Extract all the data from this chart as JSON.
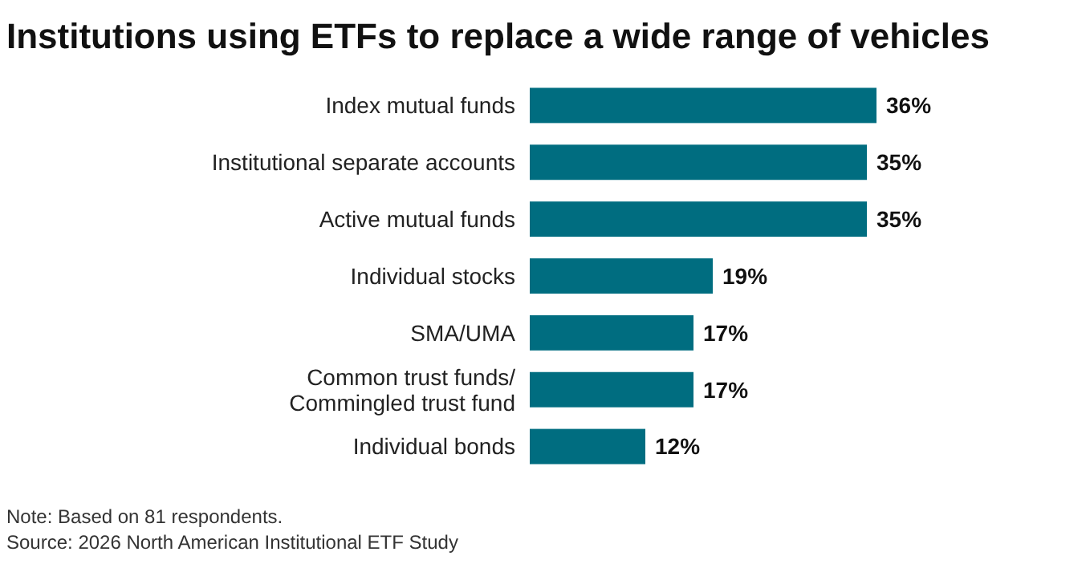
{
  "chart_data": {
    "type": "bar",
    "orientation": "horizontal",
    "title": "Institutions using ETFs to replace a wide range of vehicles",
    "categories": [
      "Index mutual funds",
      "Institutional separate accounts",
      "Active mutual funds",
      "Individual stocks",
      "SMA/UMA",
      "Common trust funds/ Commingled trust fund",
      "Individual bonds"
    ],
    "values": [
      36,
      35,
      35,
      19,
      17,
      17,
      12
    ],
    "value_labels": [
      "36%",
      "35%",
      "35%",
      "19%",
      "17%",
      "17%",
      "12%"
    ],
    "color": "#006d80",
    "tick_labels": "y",
    "grid": false,
    "annotations": [
      "Note: Based on 81 respondents.",
      "Source: 2026 North American Institutional ETF Study"
    ]
  }
}
